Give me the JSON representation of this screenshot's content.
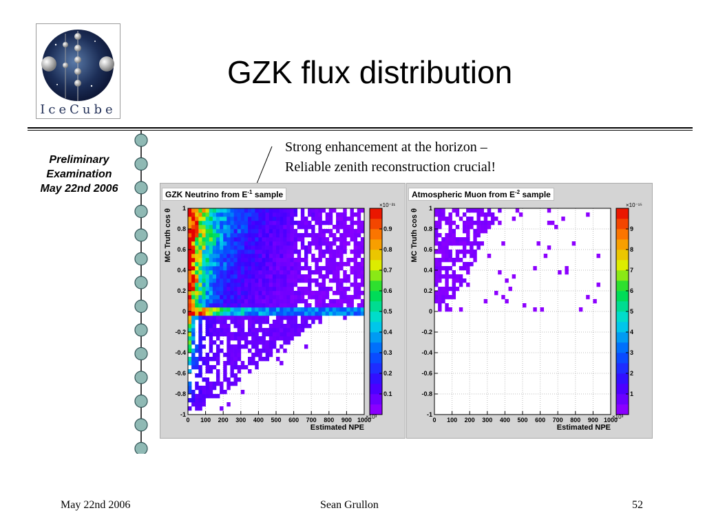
{
  "slide": {
    "title": "GZK flux distribution",
    "logo_text": "IceCube",
    "side_note": [
      "Preliminary",
      "Examination",
      "May 22nd 2006"
    ],
    "annotation": [
      "Strong enhancement at the horizon –",
      "Reliable zenith reconstruction crucial!"
    ],
    "footer": {
      "left": "May 22nd 2006",
      "center": "Sean Grullon",
      "right": "52"
    }
  },
  "chart_data": [
    {
      "type": "heatmap",
      "title_main": "GZK Neutrino from E",
      "title_sup": "-1",
      "title_tail": "sample",
      "xlabel": "Estimated NPE",
      "ylabel": "MC Truth cos θ",
      "x_multiplier_label": "×10³",
      "xlim": [
        0,
        1000
      ],
      "ylim": [
        -1,
        1
      ],
      "x_ticks": [
        0,
        100,
        200,
        300,
        400,
        500,
        600,
        700,
        800,
        900,
        1000
      ],
      "y_ticks": [
        1,
        0.8,
        0.6,
        0.4,
        0.2,
        0,
        -0.2,
        -0.4,
        -0.6,
        -0.8,
        -1
      ],
      "colorbar": {
        "min": 0,
        "max": 1.0,
        "ticks": [
          0.1,
          0.2,
          0.3,
          0.4,
          0.5,
          0.6,
          0.7,
          0.8,
          0.9
        ],
        "multiplier_label": "×10⁻²¹"
      },
      "grid": true,
      "description_of_distribution": "Intensity peaks near cosθ≈0 at low NPE (red), spreads to high NPE for cosθ between 0 and 1, sparse below −0.4"
    },
    {
      "type": "heatmap",
      "title_main": "Atmospheric Muon from E",
      "title_sup": "-2",
      "title_tail": "sample",
      "xlabel": "Estimated NPE",
      "ylabel": "MC Truth cos θ",
      "x_multiplier_label": "×10³",
      "xlim": [
        0,
        1000
      ],
      "ylim": [
        -1,
        1
      ],
      "x_ticks": [
        0,
        100,
        200,
        300,
        400,
        500,
        600,
        700,
        800,
        900,
        1000
      ],
      "y_ticks": [
        1,
        0.8,
        0.6,
        0.4,
        0.2,
        0,
        -0.2,
        -0.4,
        -0.6,
        -0.8,
        -1
      ],
      "colorbar": {
        "min": 0,
        "max": 10,
        "ticks": [
          1,
          2,
          3,
          4,
          5,
          6,
          7,
          8,
          9
        ],
        "multiplier_label": "×10⁻¹⁵"
      },
      "grid": true,
      "description_of_distribution": "Only cosθ > 0 populated, concentrated at low NPE, all near minimum colour (violet)"
    }
  ],
  "colors": {
    "bead": "#8fb9b4",
    "bead_edge": "#2d4f52",
    "panel_bg": "#d4d4d4"
  }
}
